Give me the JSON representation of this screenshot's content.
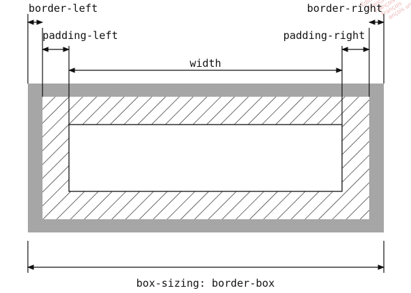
{
  "labels": {
    "border_left": "border-left",
    "border_right": "border-right",
    "padding_left": "padding-left",
    "padding_right": "padding-right",
    "width": "width",
    "caption": "box-sizing: border-box"
  },
  "watermark": {
    "lines": [
      "Éditions",
      "Français",
      "François",
      "François",
      "ançois un"
    ]
  },
  "colors": {
    "border": "#a6a6a6",
    "hatch": "#1a1a1a",
    "line": "#111111",
    "watermark": "#e79a9a"
  }
}
